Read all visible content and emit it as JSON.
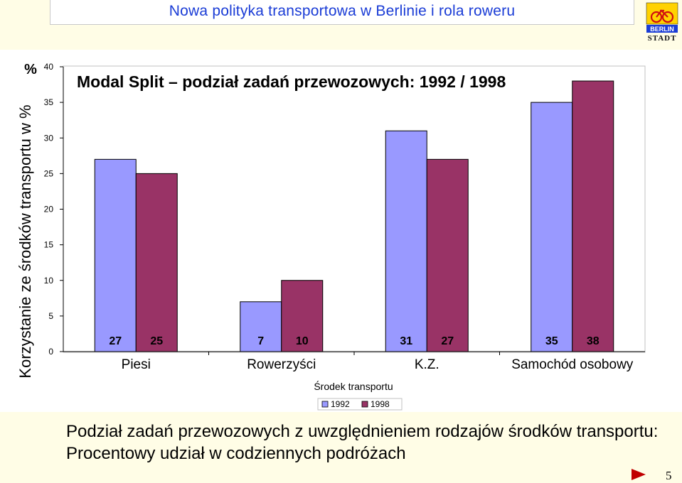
{
  "header": {
    "title": "Nowa polityka transportowa w Berlinie i rola roweru"
  },
  "logo": {
    "icon": "berlin-stadt-logo",
    "line1": "BERLIN",
    "line2": "STADT"
  },
  "chart_data": {
    "type": "bar",
    "title": "Modal Split – podział zadań przewozowych: 1992 / 1998",
    "xlabel": "Środek transportu",
    "ylabel": "Korzystanie ze środków transportu w %",
    "y_unit_label": "%",
    "categories": [
      "Piesi",
      "Rowerzyści",
      "K.Z.",
      "Samochód osobowy"
    ],
    "series": [
      {
        "name": "1992",
        "values": [
          27,
          7,
          31,
          35
        ],
        "color": "#9999ff"
      },
      {
        "name": "1998",
        "values": [
          25,
          10,
          27,
          38
        ],
        "color": "#993366"
      }
    ],
    "ylim": [
      0,
      40
    ],
    "yticks": [
      0,
      5,
      10,
      15,
      20,
      25,
      30,
      35,
      40
    ],
    "grid": false,
    "legend_position": "bottom",
    "data_labels": "below-axis"
  },
  "caption": {
    "text": "Podział zadań przewozowych z uwzględnieniem rodzajów środków transportu: Procentowy udział w codziennych podróżach"
  },
  "footer": {
    "page_number": "5",
    "next_icon": "next-slide-arrow-icon"
  }
}
